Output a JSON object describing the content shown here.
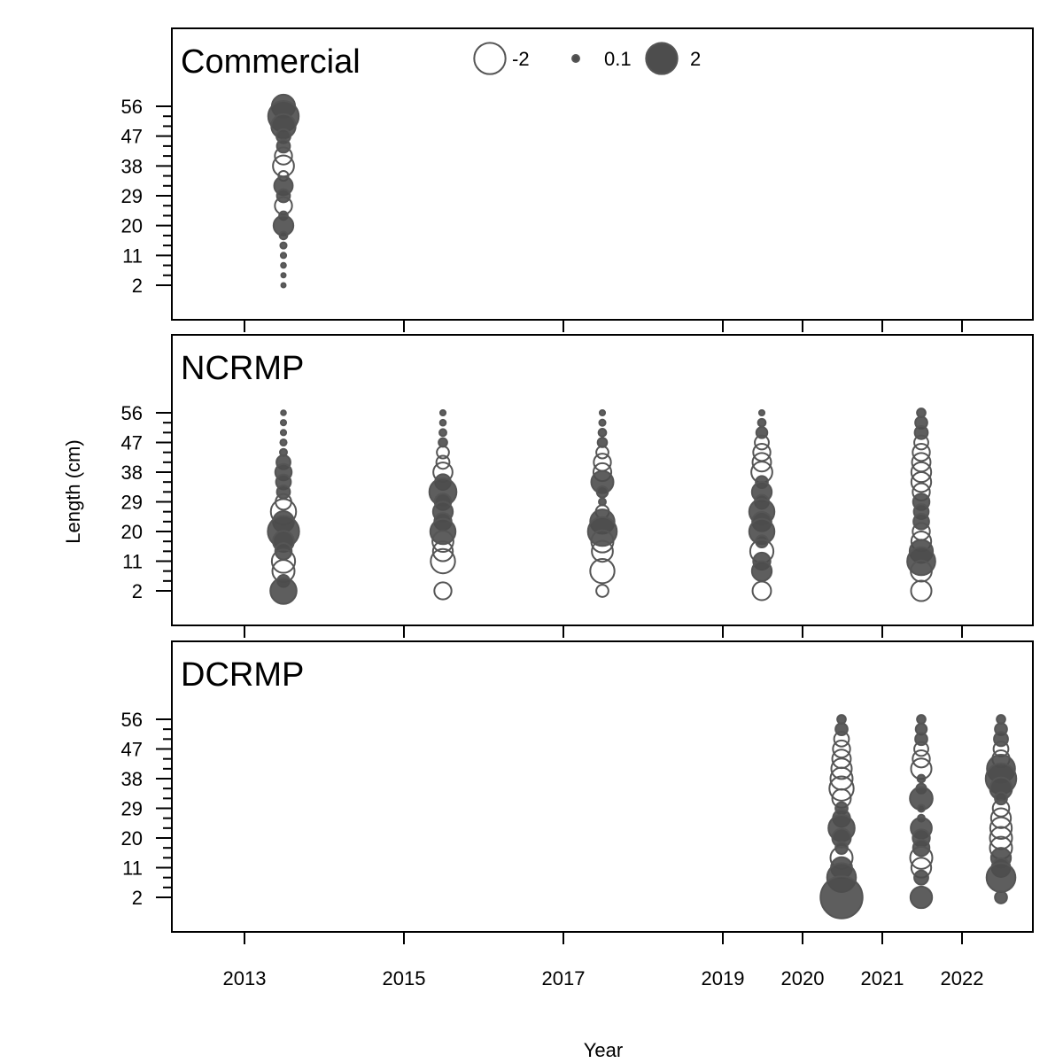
{
  "chart_data": {
    "type": "scatter",
    "subtype": "bubble",
    "xlabel": "Year",
    "ylabel": "Length (cm)",
    "x_tick_labels": [
      "2013",
      "2015",
      "2017",
      "2019",
      "2020",
      "2021",
      "2022"
    ],
    "y_tick_labels": [
      "2",
      "11",
      "20",
      "29",
      "38",
      "47",
      "56"
    ],
    "legend": {
      "position": "top-center of first panel",
      "entries": [
        {
          "label": "-2",
          "value": -2
        },
        {
          "label": "0.1",
          "value": 0.1
        },
        {
          "label": "2",
          "value": 2
        }
      ]
    },
    "colors": {
      "positive_fill": "#4d4d4d",
      "negative_stroke": "#555555",
      "frame": "#000000"
    },
    "panels": [
      {
        "name": "Commercial",
        "columns": [
          {
            "year": "2013",
            "points": [
              [
                56,
                1.1
              ],
              [
                53,
                1.9
              ],
              [
                50,
                1.2
              ],
              [
                47,
                0.4
              ],
              [
                44,
                0.35
              ],
              [
                41,
                -0.6
              ],
              [
                38,
                -0.9
              ],
              [
                35,
                -0.2
              ],
              [
                32,
                0.7
              ],
              [
                29,
                0.35
              ],
              [
                26,
                -0.6
              ],
              [
                23,
                0.15
              ],
              [
                20,
                0.8
              ],
              [
                17,
                0.12
              ],
              [
                14,
                0.08
              ],
              [
                11,
                0.06
              ],
              [
                8,
                0.05
              ],
              [
                5,
                0.04
              ],
              [
                2,
                0.04
              ]
            ]
          }
        ]
      },
      {
        "name": "NCRMP",
        "columns": [
          {
            "year": "2013",
            "points": [
              [
                56,
                0.05
              ],
              [
                53,
                0.06
              ],
              [
                50,
                0.06
              ],
              [
                47,
                0.08
              ],
              [
                44,
                0.1
              ],
              [
                41,
                0.4
              ],
              [
                38,
                0.55
              ],
              [
                35,
                0.45
              ],
              [
                32,
                0.35
              ],
              [
                29,
                -0.5
              ],
              [
                26,
                -1.3
              ],
              [
                23,
                0.9
              ],
              [
                20,
                2.0
              ],
              [
                17,
                0.9
              ],
              [
                14,
                0.55
              ],
              [
                11,
                -1.1
              ],
              [
                8,
                -1.0
              ],
              [
                5,
                0.3
              ],
              [
                2,
                1.4
              ]
            ]
          },
          {
            "year": "2015",
            "points": [
              [
                56,
                0.06
              ],
              [
                53,
                0.07
              ],
              [
                50,
                0.1
              ],
              [
                47,
                0.15
              ],
              [
                44,
                -0.3
              ],
              [
                41,
                -0.35
              ],
              [
                38,
                -0.75
              ],
              [
                35,
                0.5
              ],
              [
                32,
                1.5
              ],
              [
                29,
                0.55
              ],
              [
                26,
                0.8
              ],
              [
                23,
                0.6
              ],
              [
                20,
                1.3
              ],
              [
                17,
                -0.9
              ],
              [
                14,
                -0.8
              ],
              [
                11,
                -1.2
              ],
              [
                2,
                -0.6
              ]
            ]
          },
          {
            "year": "2017",
            "points": [
              [
                56,
                0.06
              ],
              [
                53,
                0.08
              ],
              [
                50,
                0.12
              ],
              [
                47,
                0.18
              ],
              [
                44,
                -0.3
              ],
              [
                41,
                -0.6
              ],
              [
                38,
                -0.65
              ],
              [
                35,
                1.0
              ],
              [
                32,
                0.25
              ],
              [
                29,
                0.1
              ],
              [
                26,
                -0.35
              ],
              [
                23,
                1.2
              ],
              [
                20,
                1.7
              ],
              [
                17,
                -1.0
              ],
              [
                14,
                -0.9
              ],
              [
                8,
                -1.2
              ],
              [
                2,
                -0.3
              ]
            ]
          },
          {
            "year": "2019",
            "points": [
              [
                56,
                0.06
              ],
              [
                53,
                0.12
              ],
              [
                50,
                0.25
              ],
              [
                47,
                -0.4
              ],
              [
                44,
                -0.6
              ],
              [
                41,
                -0.7
              ],
              [
                38,
                -0.9
              ],
              [
                35,
                0.3
              ],
              [
                32,
                0.8
              ],
              [
                29,
                0.4
              ],
              [
                26,
                1.3
              ],
              [
                23,
                0.75
              ],
              [
                20,
                1.3
              ],
              [
                17,
                0.3
              ],
              [
                14,
                -1.1
              ],
              [
                11,
                0.6
              ],
              [
                8,
                0.8
              ],
              [
                2,
                -0.7
              ]
            ]
          },
          {
            "year": "2021",
            "points": [
              [
                56,
                0.15
              ],
              [
                53,
                0.3
              ],
              [
                50,
                0.35
              ],
              [
                47,
                -0.4
              ],
              [
                44,
                -0.6
              ],
              [
                41,
                -0.7
              ],
              [
                38,
                -0.8
              ],
              [
                35,
                -0.8
              ],
              [
                32,
                -0.6
              ],
              [
                29,
                0.55
              ],
              [
                26,
                0.45
              ],
              [
                23,
                0.5
              ],
              [
                20,
                -0.6
              ],
              [
                17,
                -0.8
              ],
              [
                14,
                1.1
              ],
              [
                11,
                1.6
              ],
              [
                8,
                -0.9
              ],
              [
                2,
                -0.85
              ]
            ]
          }
        ]
      },
      {
        "name": "DCRMP",
        "columns": [
          {
            "year": "2020",
            "points": [
              [
                56,
                0.15
              ],
              [
                53,
                0.3
              ],
              [
                50,
                -0.45
              ],
              [
                47,
                -0.6
              ],
              [
                44,
                -0.7
              ],
              [
                41,
                -0.85
              ],
              [
                38,
                -1.0
              ],
              [
                35,
                -1.2
              ],
              [
                32,
                -0.7
              ],
              [
                29,
                0.3
              ],
              [
                26,
                0.6
              ],
              [
                23,
                1.4
              ],
              [
                20,
                0.7
              ],
              [
                17,
                0.3
              ],
              [
                14,
                -1.0
              ],
              [
                11,
                0.9
              ],
              [
                8,
                1.7
              ],
              [
                2,
                3.6
              ]
            ]
          },
          {
            "year": "2021",
            "points": [
              [
                56,
                0.15
              ],
              [
                53,
                0.25
              ],
              [
                50,
                0.3
              ],
              [
                47,
                -0.4
              ],
              [
                44,
                -0.6
              ],
              [
                41,
                -0.85
              ],
              [
                38,
                0.12
              ],
              [
                35,
                0.2
              ],
              [
                32,
                1.05
              ],
              [
                29,
                0.1
              ],
              [
                26,
                0.1
              ],
              [
                23,
                0.9
              ],
              [
                20,
                0.6
              ],
              [
                17,
                0.55
              ],
              [
                14,
                -1.0
              ],
              [
                11,
                -0.8
              ],
              [
                8,
                0.4
              ],
              [
                2,
                0.95
              ]
            ]
          },
          {
            "year": "2022",
            "points": [
              [
                56,
                0.15
              ],
              [
                53,
                0.3
              ],
              [
                50,
                0.4
              ],
              [
                47,
                -0.45
              ],
              [
                44,
                -0.6
              ],
              [
                41,
                1.6
              ],
              [
                38,
                1.9
              ],
              [
                35,
                1.0
              ],
              [
                32,
                0.3
              ],
              [
                29,
                -0.55
              ],
              [
                26,
                -0.8
              ],
              [
                23,
                -0.95
              ],
              [
                20,
                -1.0
              ],
              [
                17,
                -1.0
              ],
              [
                14,
                0.8
              ],
              [
                11,
                0.7
              ],
              [
                8,
                1.7
              ],
              [
                2,
                0.3
              ]
            ]
          }
        ]
      }
    ]
  }
}
